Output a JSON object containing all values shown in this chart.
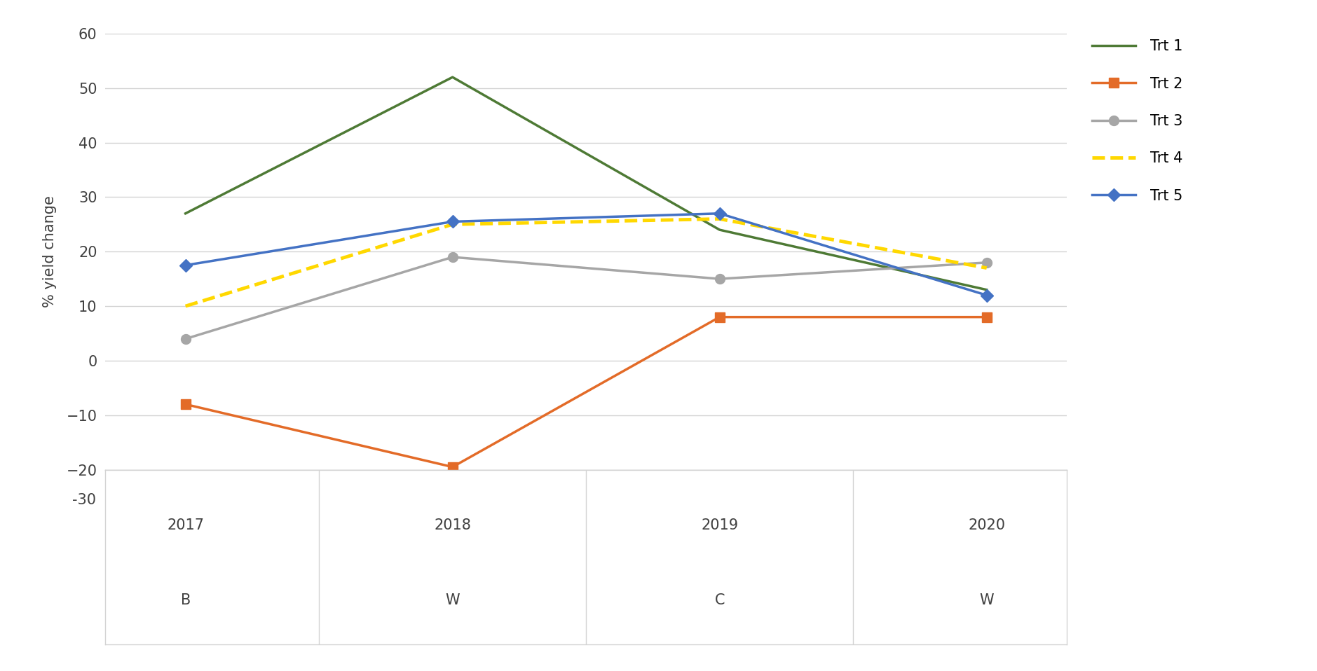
{
  "x_positions": [
    0,
    1,
    2,
    3
  ],
  "x_labels_year": [
    "2017",
    "2018",
    "2019",
    "2020"
  ],
  "x_labels_letter": [
    "B",
    "W",
    "C",
    "W"
  ],
  "series": {
    "Trt 1": {
      "values": [
        27,
        52,
        24,
        13
      ],
      "color": "#4e7a35",
      "linestyle": "-",
      "marker": null,
      "linewidth": 2.5,
      "markersize": 0
    },
    "Trt 2": {
      "values": [
        -8,
        -19.5,
        8,
        8
      ],
      "color": "#e36b28",
      "linestyle": "-",
      "marker": "s",
      "linewidth": 2.5,
      "markersize": 10
    },
    "Trt 3": {
      "values": [
        4,
        19,
        15,
        18
      ],
      "color": "#a6a6a6",
      "linestyle": "-",
      "marker": "o",
      "linewidth": 2.5,
      "markersize": 10
    },
    "Trt 4": {
      "values": [
        10,
        25,
        26,
        17
      ],
      "color": "#ffd800",
      "linestyle": "--",
      "marker": null,
      "linewidth": 3.5,
      "markersize": 0
    },
    "Trt 5": {
      "values": [
        17.5,
        25.5,
        27,
        12
      ],
      "color": "#4472c4",
      "linestyle": "-",
      "marker": "D",
      "linewidth": 2.5,
      "markersize": 9
    }
  },
  "ylabel": "% yield change",
  "ylim_plot": [
    -20,
    60
  ],
  "ylim_full": [
    -30,
    60
  ],
  "yticks": [
    -20,
    -10,
    0,
    10,
    20,
    30,
    40,
    50,
    60
  ],
  "background_color": "#ffffff",
  "grid_color": "#d3d3d3",
  "legend_order": [
    "Trt 1",
    "Trt 2",
    "Trt 3",
    "Trt 4",
    "Trt 5"
  ]
}
